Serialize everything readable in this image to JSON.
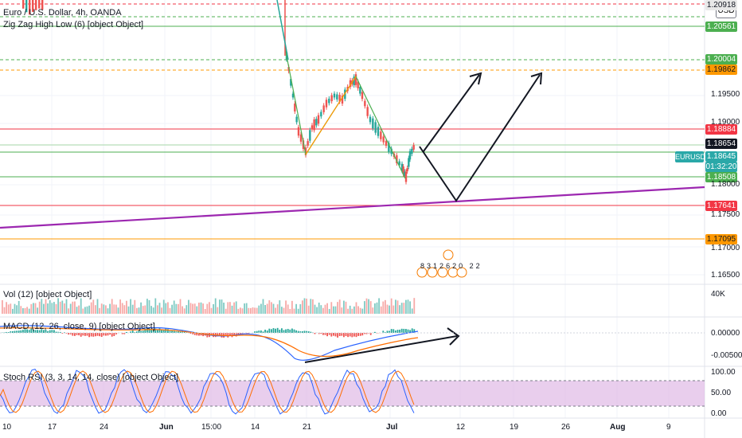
{
  "header": {
    "symbol_title": "Euro / U.S. Dollar, 4h, OANDA",
    "zigzag_label": "Zig Zag High Low (6) [object Object]"
  },
  "currency_button": "USD",
  "ticker": {
    "symbol": "EURUSD",
    "price": "1.18645",
    "countdown": "01:32:20"
  },
  "price_levels": [
    {
      "label": "1.20918",
      "color": "#e8e8e8"
    },
    {
      "label": "1.20561",
      "color": "#4caf50"
    },
    {
      "label": "1.20004",
      "color": "#4caf50"
    },
    {
      "label": "1.19862",
      "color": "#ff9800"
    },
    {
      "label": "1.18884",
      "color": "#f23645"
    },
    {
      "label": "1.18654",
      "color": "#131722"
    },
    {
      "label": "1.18508",
      "color": "#4caf50"
    },
    {
      "label": "1.17641",
      "color": "#f23645"
    },
    {
      "label": "1.17095",
      "color": "#ff9800"
    }
  ],
  "price_axis": [
    "1.19500",
    "1.19000",
    "1.18000",
    "1.17500",
    "1.17000",
    "1.16500"
  ],
  "volume": {
    "label": "Vol (12) [object Object]",
    "axis": "40K"
  },
  "macd": {
    "label": "MACD (12, 26, close, 9) [object Object]",
    "axis": [
      "0.00000",
      "-0.00500"
    ]
  },
  "stoch_rsi": {
    "label": "Stoch RSI (3, 3, 14, 14, close) [object Object]",
    "axis": [
      "100.00",
      "50.00",
      "0.00"
    ]
  },
  "time_axis": [
    "10",
    "17",
    "24",
    "Jun",
    "15:00",
    "14",
    "21",
    "Jul",
    "12",
    "19",
    "26",
    "Aug",
    "9"
  ],
  "events": [
    "8",
    "3",
    "1",
    "2",
    "6",
    "2",
    "0",
    "2",
    "2"
  ],
  "colors": {
    "up": "#26a69a",
    "down": "#ef5350",
    "zigzag": "#4caf50",
    "zigzag_alt": "#ff9800",
    "trendline": "#9c27b0",
    "stoch_band": "#e1bee7",
    "macd": "#2962ff",
    "signal": "#ff6d00"
  }
}
